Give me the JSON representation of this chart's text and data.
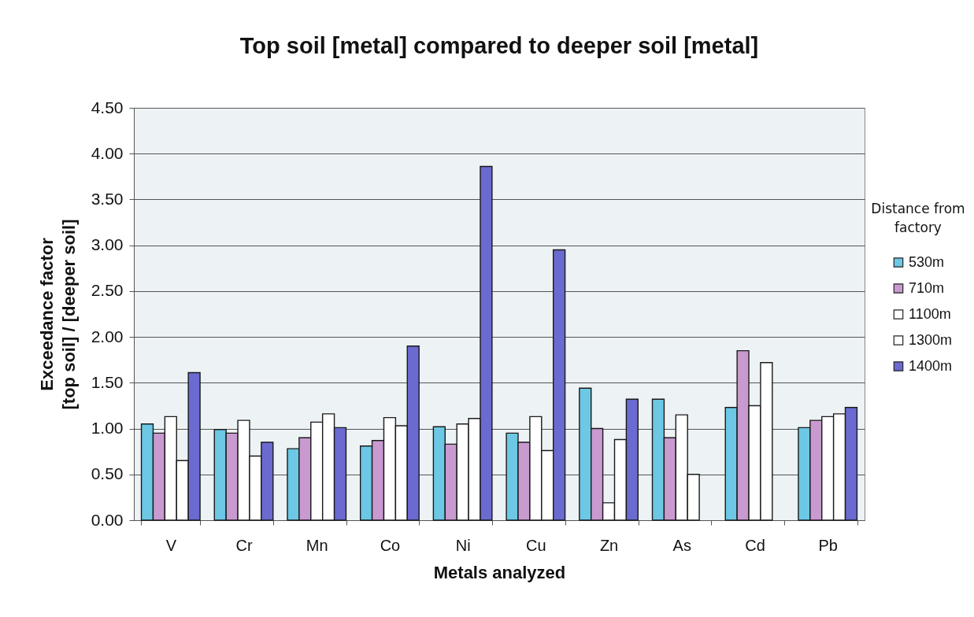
{
  "chart_data": {
    "type": "bar",
    "title": "Top soil [metal] compared to deeper soil [metal]",
    "xlabel": "Metals analyzed",
    "ylabel": "Exceedance factor [top soil] / [deeper soil]",
    "legend_title": "Distance from factory",
    "categories": [
      "V",
      "Cr",
      "Mn",
      "Co",
      "Ni",
      "Cu",
      "Zn",
      "As",
      "Cd",
      "Pb"
    ],
    "series": [
      {
        "name": "530m",
        "color": "#6cc8e4",
        "values": [
          1.05,
          0.99,
          0.78,
          0.81,
          1.02,
          0.95,
          1.44,
          1.32,
          1.23,
          1.01
        ]
      },
      {
        "name": "710m",
        "color": "#c99ad0",
        "values": [
          0.95,
          0.95,
          0.9,
          0.87,
          0.83,
          0.85,
          1.0,
          0.9,
          1.85,
          1.09
        ]
      },
      {
        "name": "1100m",
        "color": "#ffffff",
        "values": [
          1.13,
          1.09,
          1.07,
          1.12,
          1.05,
          1.13,
          0.19,
          1.15,
          1.25,
          1.13
        ]
      },
      {
        "name": "1300m",
        "color": "#ffffff",
        "values": [
          0.65,
          0.7,
          1.16,
          1.03,
          1.11,
          0.76,
          0.88,
          0.5,
          1.72,
          1.16
        ]
      },
      {
        "name": "1400m",
        "color": "#6a6ad0",
        "values": [
          1.61,
          0.85,
          1.01,
          1.9,
          3.86,
          2.95,
          1.32,
          null,
          null,
          1.23
        ]
      }
    ],
    "ylim": [
      0,
      4.5
    ],
    "yticks": [
      {
        "value": 0,
        "label": "0.00"
      },
      {
        "value": 0.5,
        "label": "0.50"
      },
      {
        "value": 1,
        "label": "1.00"
      },
      {
        "value": 1.5,
        "label": "1.50"
      },
      {
        "value": 2,
        "label": "2.00"
      },
      {
        "value": 2.5,
        "label": "2.50"
      },
      {
        "value": 3,
        "label": "3.00"
      },
      {
        "value": 3.5,
        "label": "3.50"
      },
      {
        "value": 4,
        "label": "4.00"
      },
      {
        "value": 4.5,
        "label": "4.50"
      }
    ],
    "grid": "y",
    "legend": "right"
  }
}
